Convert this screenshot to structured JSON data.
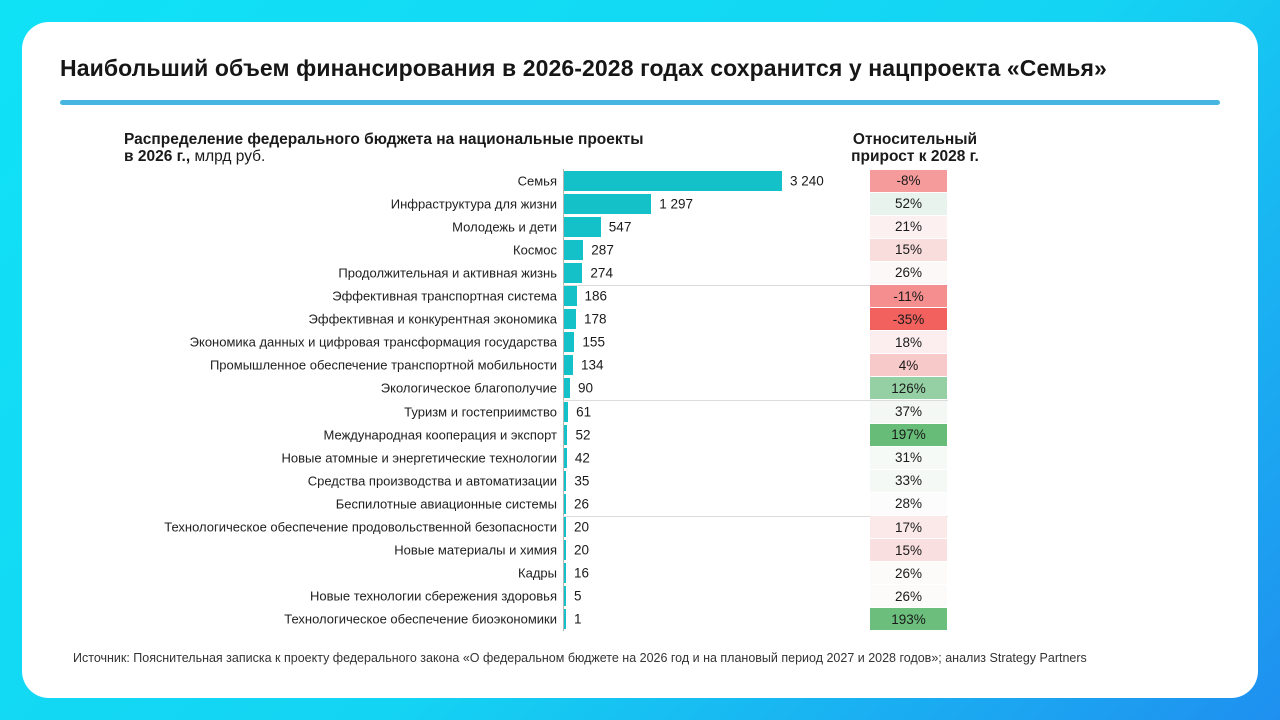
{
  "page": {
    "title": "Наибольший объем финансирования в 2026-2028 годах сохранится у нацпроекта «Семья»",
    "source": "Источник: Пояснительная записка к проекту федерального закона «О федеральном бюджете на 2026 год и на плановый период 2027 и 2028 годов»; анализ Strategy Partners"
  },
  "colors": {
    "background_gradient_start": "#10e2f6",
    "background_gradient_end": "#1f90f0",
    "accent_line": "#47b6e0",
    "bar": "#15c1c9",
    "axis": "#b5b5b5",
    "separator": "#dcdcdc"
  },
  "chart_data": {
    "type": "bar",
    "orientation": "horizontal",
    "title_left_line1": "Распределение федерального бюджета на национальные проекты",
    "title_left_line2_bold": "в 2026 г.,",
    "title_left_line2_normal": " млрд руб.",
    "title_right_line1": "Относительный",
    "title_right_line2": "прирост к 2028 г.",
    "xlim": [
      0,
      3240
    ],
    "grid": false,
    "separators_after": [
      4,
      9,
      14
    ],
    "rows": [
      {
        "label": "Семья",
        "value": 3240,
        "value_label": "3 240",
        "growth_pct": -8,
        "growth_label": "-8%",
        "badge_color": "#f59b9b"
      },
      {
        "label": "Инфраструктура для жизни",
        "value": 1297,
        "value_label": "1 297",
        "growth_pct": 52,
        "growth_label": "52%",
        "badge_color": "#e8f3ed"
      },
      {
        "label": "Молодежь и дети",
        "value": 547,
        "value_label": "547",
        "growth_pct": 21,
        "growth_label": "21%",
        "badge_color": "#fcf0f0"
      },
      {
        "label": "Космос",
        "value": 287,
        "value_label": "287",
        "growth_pct": 15,
        "growth_label": "15%",
        "badge_color": "#f9dcdc"
      },
      {
        "label": "Продолжительная и активная жизнь",
        "value": 274,
        "value_label": "274",
        "growth_pct": 26,
        "growth_label": "26%",
        "badge_color": "#fdf8f8"
      },
      {
        "label": "Эффективная транспортная система",
        "value": 186,
        "value_label": "186",
        "growth_pct": -11,
        "growth_label": "-11%",
        "badge_color": "#f58f8f"
      },
      {
        "label": "Эффективная и конкурентная экономика",
        "value": 178,
        "value_label": "178",
        "growth_pct": -35,
        "growth_label": "-35%",
        "badge_color": "#f2615e"
      },
      {
        "label": "Экономика данных и цифровая трансформация государства",
        "value": 155,
        "value_label": "155",
        "growth_pct": 18,
        "growth_label": "18%",
        "badge_color": "#fceeee"
      },
      {
        "label": "Промышленное обеспечение транспортной мобильности",
        "value": 134,
        "value_label": "134",
        "growth_pct": 4,
        "growth_label": "4%",
        "badge_color": "#f8c9c9"
      },
      {
        "label": "Экологическое благополучие",
        "value": 90,
        "value_label": "90",
        "growth_pct": 126,
        "growth_label": "126%",
        "badge_color": "#95d0a4"
      },
      {
        "label": "Туризм и гостеприимство",
        "value": 61,
        "value_label": "61",
        "growth_pct": 37,
        "growth_label": "37%",
        "badge_color": "#f3f8f5"
      },
      {
        "label": "Международная кооперация и экспорт",
        "value": 52,
        "value_label": "52",
        "growth_pct": 197,
        "growth_label": "197%",
        "badge_color": "#67bc78"
      },
      {
        "label": "Новые атомные и энергетические технологии",
        "value": 42,
        "value_label": "42",
        "growth_pct": 31,
        "growth_label": "31%",
        "badge_color": "#f6faf7"
      },
      {
        "label": "Средства производства и автоматизации",
        "value": 35,
        "value_label": "35",
        "growth_pct": 33,
        "growth_label": "33%",
        "badge_color": "#f5f9f6"
      },
      {
        "label": "Беспилотные авиационные системы",
        "value": 26,
        "value_label": "26",
        "growth_pct": 28,
        "growth_label": "28%",
        "badge_color": "#fbfcfb"
      },
      {
        "label": "Технологическое обеспечение продовольственной безопасности",
        "value": 20,
        "value_label": "20",
        "growth_pct": 17,
        "growth_label": "17%",
        "badge_color": "#fbe9e9"
      },
      {
        "label": "Новые материалы и химия",
        "value": 20,
        "value_label": "20",
        "growth_pct": 15,
        "growth_label": "15%",
        "badge_color": "#f9dfdf"
      },
      {
        "label": "Кадры",
        "value": 16,
        "value_label": "16",
        "growth_pct": 26,
        "growth_label": "26%",
        "badge_color": "#fdfafa"
      },
      {
        "label": "Новые технологии сбережения здоровья",
        "value": 5,
        "value_label": "5",
        "growth_pct": 26,
        "growth_label": "26%",
        "badge_color": "#fdfafa"
      },
      {
        "label": "Технологическое обеспечение биоэкономики",
        "value": 1,
        "value_label": "1",
        "growth_pct": 193,
        "growth_label": "193%",
        "badge_color": "#6cbe7c"
      }
    ]
  }
}
